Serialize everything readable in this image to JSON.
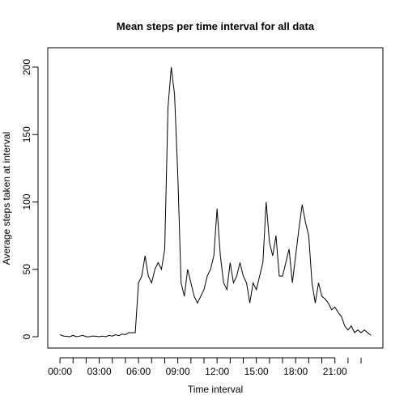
{
  "chart_data": {
    "type": "line",
    "title": "Mean steps per time interval for all data",
    "x_label": "Time interval",
    "y_label": "Average steps taken at interval",
    "x": [
      0,
      15,
      30,
      45,
      60,
      75,
      90,
      105,
      120,
      135,
      150,
      165,
      180,
      195,
      210,
      225,
      240,
      255,
      270,
      285,
      300,
      315,
      330,
      345,
      360,
      375,
      390,
      405,
      420,
      435,
      450,
      465,
      480,
      495,
      510,
      525,
      540,
      555,
      570,
      585,
      600,
      615,
      630,
      645,
      660,
      675,
      690,
      705,
      720,
      735,
      750,
      765,
      780,
      795,
      810,
      825,
      840,
      855,
      870,
      885,
      900,
      915,
      930,
      945,
      960,
      975,
      990,
      1005,
      1020,
      1035,
      1050,
      1065,
      1080,
      1095,
      1110,
      1125,
      1140,
      1155,
      1170,
      1185,
      1200,
      1215,
      1230,
      1245,
      1260,
      1275,
      1290,
      1305,
      1320,
      1335,
      1350,
      1365,
      1380,
      1395,
      1410,
      1425
    ],
    "series": [
      {
        "color": "#000000",
        "values": [
          1.5,
          0.5,
          0.3,
          0,
          1,
          0,
          0.5,
          1,
          0,
          0,
          0.5,
          0.3,
          0,
          0.5,
          0,
          1,
          0.5,
          1.5,
          0.8,
          2,
          1.5,
          3,
          3,
          3,
          40,
          45,
          60,
          45,
          40,
          50,
          55,
          50,
          65,
          170,
          200,
          180,
          120,
          40,
          30,
          50,
          40,
          30,
          25,
          30,
          35,
          45,
          50,
          60,
          95,
          60,
          40,
          35,
          55,
          40,
          45,
          55,
          45,
          40,
          25,
          40,
          35,
          45,
          55,
          100,
          70,
          60,
          75,
          45,
          45,
          55,
          65,
          40,
          60,
          80,
          98,
          85,
          75,
          40,
          25,
          40,
          30,
          28,
          25,
          20,
          22,
          18,
          15,
          8,
          5,
          8,
          3,
          5,
          3,
          5,
          3,
          1
        ]
      }
    ],
    "xlim": [
      -56,
      1480
    ],
    "ylim": [
      -8.4,
      214.4
    ],
    "xticks": [
      {
        "value": 0,
        "label": "00:00"
      },
      {
        "value": 180,
        "label": "03:00"
      },
      {
        "value": 360,
        "label": "06:00"
      },
      {
        "value": 540,
        "label": "09:00"
      },
      {
        "value": 720,
        "label": "12:00"
      },
      {
        "value": 900,
        "label": "15:00"
      },
      {
        "value": 1080,
        "label": "18:00"
      },
      {
        "value": 1260,
        "label": "21:00"
      }
    ],
    "xminor_ticks": [
      60,
      120,
      240,
      300,
      420,
      480,
      600,
      660,
      780,
      840,
      960,
      1020,
      1140,
      1200,
      1320,
      1380
    ],
    "yticks": [
      0,
      50,
      100,
      150,
      200
    ]
  }
}
